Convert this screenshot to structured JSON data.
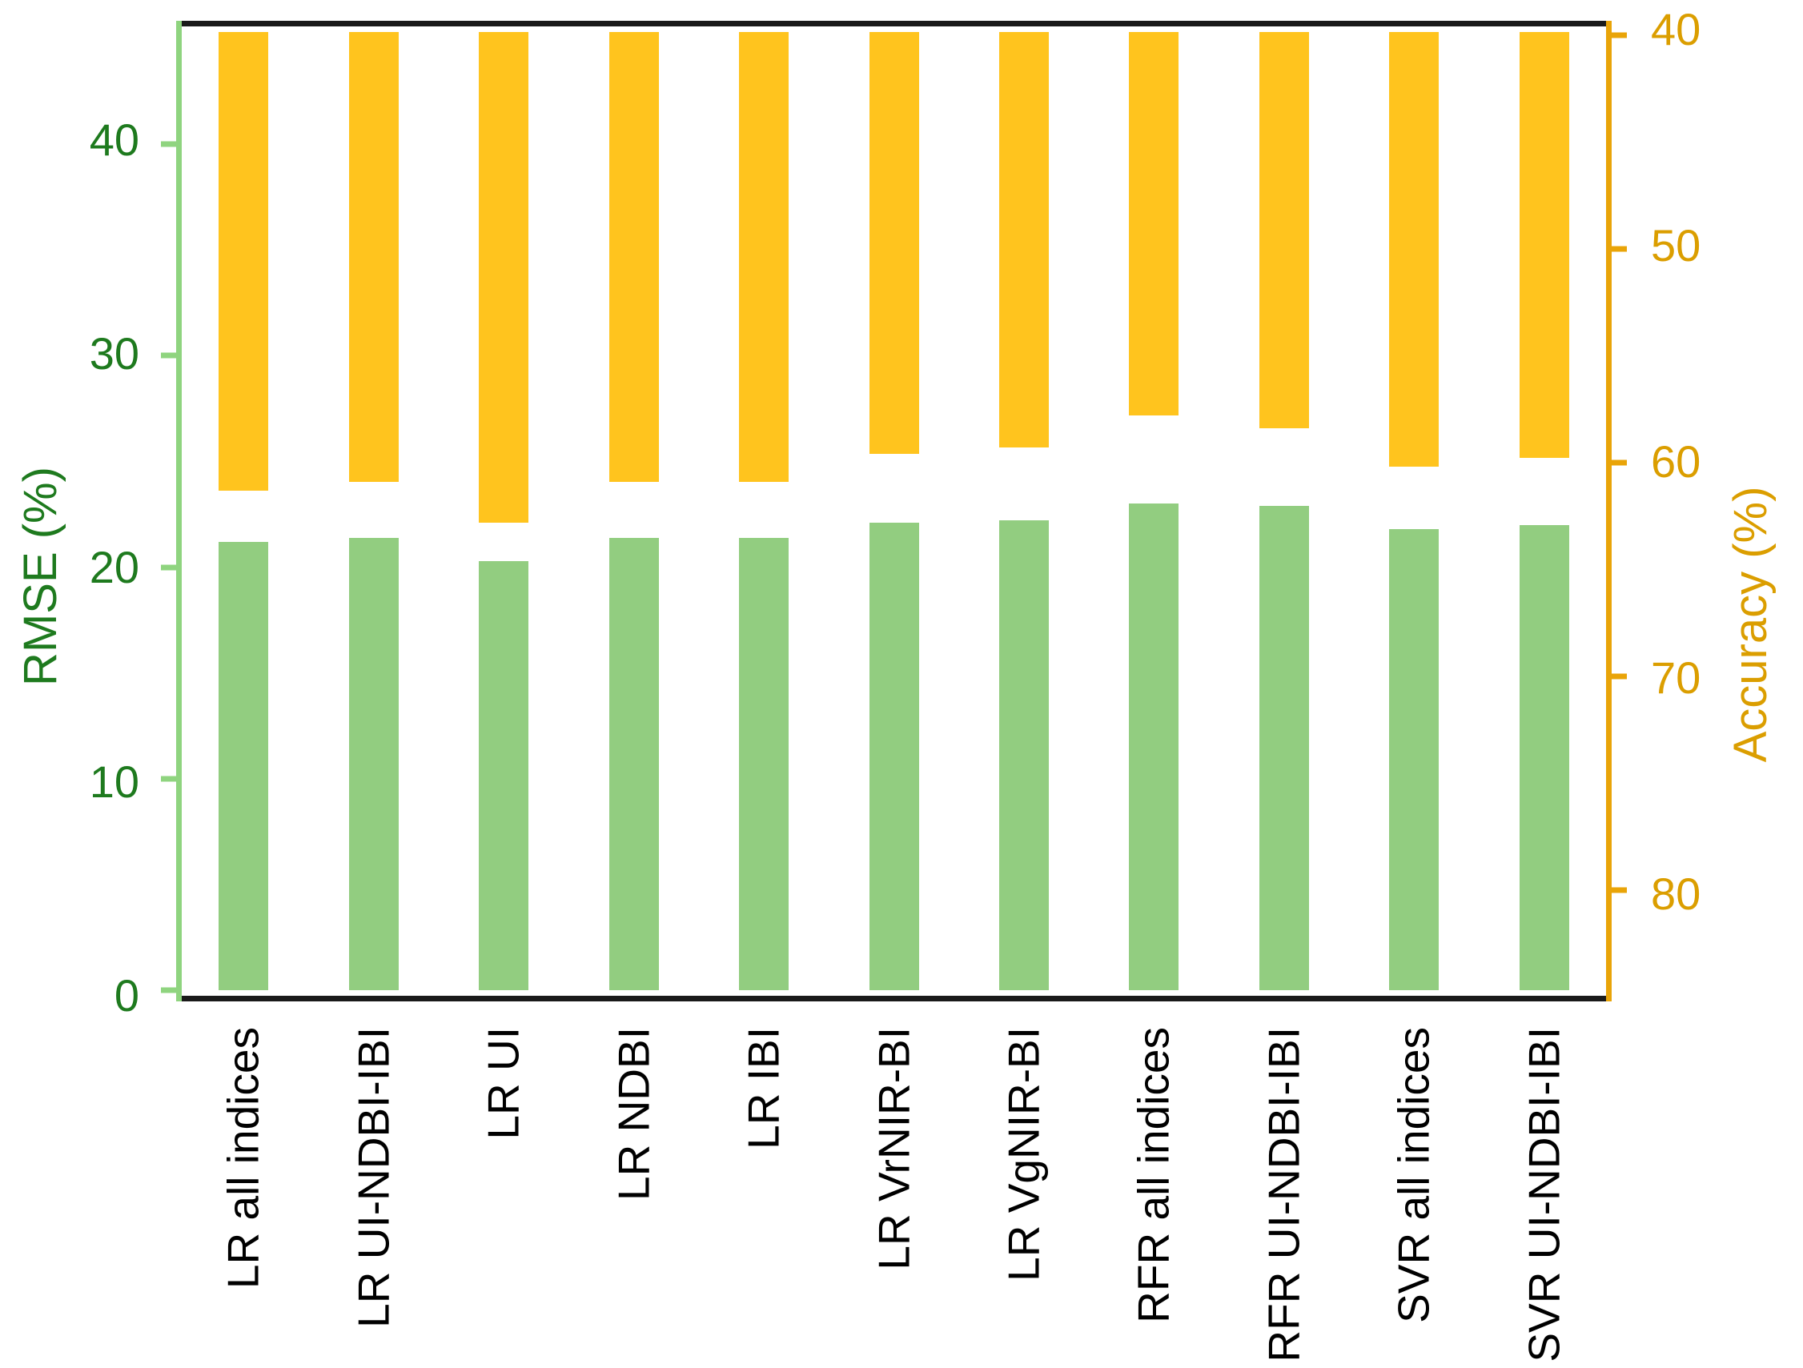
{
  "chart_data": {
    "type": "bar",
    "title": "",
    "categories": [
      "LR all indices",
      "LR UI-NDBI-IBI",
      "LR UI",
      "LR NDBI",
      "LR IBI",
      "LR VrNIR-BI",
      "LR VgNIR-BI",
      "RFR all indices",
      "RFR UI-NDBI-IBI",
      "SVR all indices",
      "SVR UI-NDBI-IBI"
    ],
    "series": [
      {
        "name": "RMSE (%)",
        "axis": "left",
        "type": "bar-from-bottom",
        "values": [
          21.2,
          21.4,
          20.3,
          21.4,
          21.4,
          22.1,
          22.2,
          23.0,
          22.9,
          21.8,
          22.0
        ]
      },
      {
        "name": "Accuracy (%)",
        "axis": "right",
        "type": "bar-from-top",
        "values": [
          61.3,
          60.9,
          62.8,
          60.9,
          60.9,
          59.6,
          59.3,
          57.8,
          58.4,
          60.2,
          59.8
        ]
      }
    ],
    "left_axis": {
      "label": "RMSE (%)",
      "ticks": [
        0,
        10,
        20,
        30,
        40
      ],
      "top_value": 45.3,
      "bottom_value": 0,
      "direction": "normal"
    },
    "right_axis": {
      "label": "Accuracy (%)",
      "ticks": [
        40,
        50,
        60,
        70,
        80
      ],
      "top_value": 39.85,
      "bottom_value": 84.7,
      "direction": "inverted"
    },
    "legend": false,
    "grid": false,
    "colors": {
      "rmse_bar": "#92CD80",
      "accuracy_bar": "#FFC41E",
      "left_axis_line": "#8FD47F",
      "left_axis_text": "#1E7A1E",
      "right_axis_line": "#E9A408",
      "right_axis_text": "#DB9E00",
      "frame": "#1A1A1A",
      "x_label_text": "#000000"
    }
  }
}
